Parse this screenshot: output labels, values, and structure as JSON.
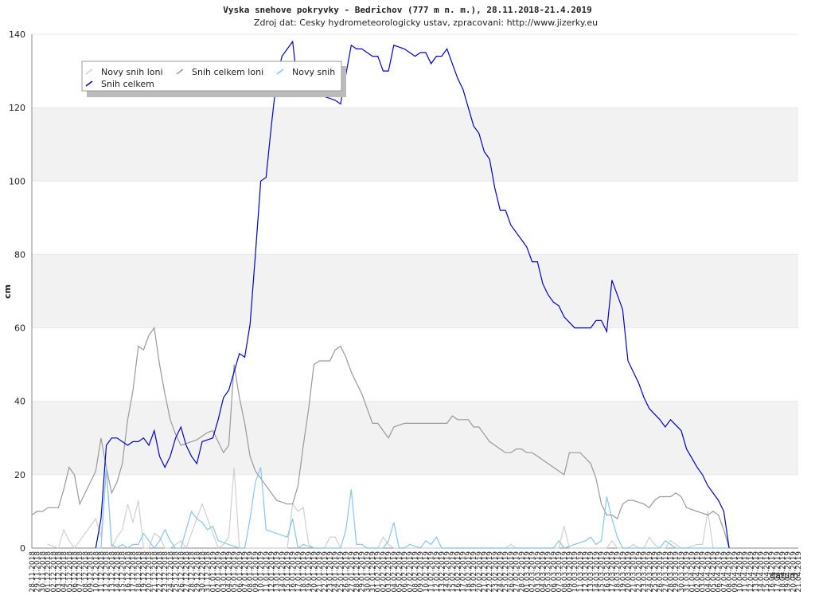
{
  "chart_data": {
    "type": "line",
    "title": "Vyska snehove pokryvky - Bedrichov (777 m n. m.), 28.11.2018-21.4.2019",
    "subtitle": "Zdroj dat: Cesky hydrometeorologicky ustav, zpracovani: http://www.jizerky.eu",
    "y_label": "cm",
    "x_label": "datum",
    "categories": [
      "28.11.2018",
      "29.11.2018",
      "30.11.2018",
      "01.12.2018",
      "02.12.2018",
      "03.12.2018",
      "04.12.2018",
      "05.12.2018",
      "06.12.2018",
      "07.12.2018",
      "08.12.2018",
      "09.12.2018",
      "10.12.2018",
      "11.12.2018",
      "12.12.2018",
      "13.12.2018",
      "14.12.2018",
      "15.12.2018",
      "16.12.2018",
      "17.12.2018",
      "18.12.2018",
      "19.12.2018",
      "20.12.2018",
      "21.12.2018",
      "22.12.2018",
      "23.12.2018",
      "24.12.2018",
      "25.12.2018",
      "26.12.2018",
      "27.12.2018",
      "28.12.2018",
      "29.12.2018",
      "30.12.2018",
      "31.12.2018",
      "01.01.2019",
      "02.01.2019",
      "03.01.2019",
      "04.01.2019",
      "05.01.2019",
      "06.01.2019",
      "07.01.2019",
      "08.01.2019",
      "09.01.2019",
      "10.01.2019",
      "11.01.2019",
      "12.01.2019",
      "13.01.2019",
      "14.01.2019",
      "15.01.2019",
      "16.01.2019",
      "17.01.2019",
      "18.01.2019",
      "19.01.2019",
      "20.01.2019",
      "21.01.2019",
      "22.01.2019",
      "23.01.2019",
      "24.01.2019",
      "25.01.2019",
      "26.01.2019",
      "27.01.2019",
      "28.01.2019",
      "29.01.2019",
      "30.01.2019",
      "31.01.2019",
      "01.02.2019",
      "02.02.2019",
      "03.02.2019",
      "04.02.2019",
      "05.02.2019",
      "06.02.2019",
      "07.02.2019",
      "08.02.2019",
      "09.02.2019",
      "10.02.2019",
      "11.02.2019",
      "12.02.2019",
      "13.02.2019",
      "14.02.2019",
      "15.02.2019",
      "16.02.2019",
      "17.02.2019",
      "18.02.2019",
      "19.02.2019",
      "20.02.2019",
      "21.02.2019",
      "22.02.2019",
      "23.02.2019",
      "24.02.2019",
      "25.02.2019",
      "26.02.2019",
      "27.02.2019",
      "28.02.2019",
      "01.03.2019",
      "02.03.2019",
      "03.03.2019",
      "04.03.2019",
      "05.03.2019",
      "06.03.2019",
      "07.03.2019",
      "08.03.2019",
      "09.03.2019",
      "10.03.2019",
      "11.03.2019",
      "12.03.2019",
      "13.03.2019",
      "14.03.2019",
      "15.03.2019",
      "16.03.2019",
      "17.03.2019",
      "18.03.2019",
      "19.03.2019",
      "20.03.2019",
      "21.03.2019",
      "22.03.2019",
      "23.03.2019",
      "24.03.2019",
      "25.03.2019",
      "26.03.2019",
      "27.03.2019",
      "28.03.2019",
      "29.03.2019",
      "30.03.2019",
      "31.03.2019",
      "01.04.2019",
      "02.04.2019",
      "03.04.2019",
      "04.04.2019",
      "05.04.2019",
      "06.04.2019",
      "07.04.2019",
      "08.04.2019",
      "09.04.2019",
      "10.04.2019",
      "11.04.2019",
      "12.04.2019",
      "13.04.2019",
      "14.04.2019",
      "15.04.2019",
      "16.04.2019",
      "17.04.2019",
      "18.04.2019",
      "19.04.2019",
      "20.04.2019",
      "21.04.2019"
    ],
    "series": [
      {
        "name": "Novy snih loni",
        "color": "#d0d0d0",
        "values": [
          null,
          null,
          null,
          1,
          0.5,
          0,
          5,
          2,
          0,
          2,
          4,
          6,
          8,
          3,
          22,
          0,
          3,
          5,
          12,
          7,
          13,
          0,
          0,
          4,
          3,
          0,
          0,
          1,
          2,
          0,
          4,
          8,
          12,
          8,
          4,
          0,
          1,
          3,
          22,
          0,
          0,
          0,
          0,
          0,
          0,
          0,
          0,
          0,
          0,
          12,
          10,
          11,
          1,
          0,
          0,
          0,
          3,
          3,
          0,
          0,
          0,
          0,
          0,
          0,
          0,
          0,
          3,
          1,
          0,
          0,
          0,
          0,
          0,
          0,
          0,
          0,
          0,
          0,
          0,
          0,
          0,
          0,
          0,
          0,
          0,
          0,
          0,
          0,
          0,
          0,
          1,
          0,
          0,
          0,
          0,
          0,
          0,
          0,
          0,
          0,
          6,
          0,
          0,
          0,
          0,
          0,
          0,
          0,
          0,
          2,
          0,
          0,
          0,
          1,
          0,
          0,
          3,
          1,
          0,
          0,
          2,
          1,
          0,
          0,
          0.5,
          1,
          1,
          10,
          0,
          null,
          null,
          null,
          null,
          null,
          null,
          null,
          null,
          null,
          null,
          null,
          null,
          null,
          null,
          null,
          null
        ]
      },
      {
        "name": "Snih celkem loni",
        "color": "#999999",
        "values": [
          9,
          10,
          10,
          11,
          11,
          11,
          16,
          22,
          20,
          12,
          15,
          18,
          21,
          30,
          22,
          15,
          18,
          23,
          35,
          43,
          55,
          54,
          58,
          60,
          50,
          42,
          35,
          31,
          28,
          28.5,
          29,
          29.5,
          30.5,
          31.5,
          32,
          29,
          26,
          28,
          50,
          41,
          34,
          25,
          21,
          19,
          17,
          15,
          13,
          12.5,
          12,
          12,
          17,
          28,
          38,
          50,
          51,
          51,
          51,
          54,
          55,
          52,
          48,
          45,
          42,
          38,
          34,
          34,
          32,
          30,
          33,
          33.5,
          34,
          34,
          34,
          34,
          34,
          34,
          34,
          34,
          34,
          36,
          35,
          35,
          35,
          33,
          33,
          31,
          29,
          28,
          27,
          26,
          26,
          27,
          27,
          26,
          26,
          25,
          24,
          23,
          22,
          21,
          20,
          26,
          26,
          26,
          24.5,
          23,
          19,
          12,
          9,
          9,
          8,
          12,
          13,
          13,
          12.5,
          12,
          11,
          13,
          14,
          14,
          14,
          15,
          14,
          11,
          10.5,
          10,
          9.5,
          9,
          10,
          9,
          5,
          0,
          null,
          null,
          null,
          null,
          null,
          null,
          null,
          null,
          null,
          null,
          null,
          null,
          null
        ]
      },
      {
        "name": "Novy snih",
        "color": "#87c6e8",
        "values": [
          null,
          null,
          null,
          null,
          null,
          null,
          null,
          null,
          null,
          null,
          null,
          null,
          0,
          0,
          22,
          1,
          0,
          1,
          0,
          1,
          1,
          4,
          2,
          0,
          2,
          5,
          2,
          0,
          0,
          5,
          10,
          8,
          7,
          5,
          6,
          2,
          1.5,
          1,
          0.5,
          0,
          0,
          8,
          18,
          22,
          5,
          4.5,
          4,
          3.5,
          3,
          8,
          0,
          1,
          0.5,
          0,
          0,
          0,
          0,
          0,
          0,
          5,
          16,
          1,
          1,
          0,
          0,
          0,
          0,
          2,
          7,
          0,
          0,
          1,
          0.5,
          0,
          2,
          1,
          3,
          0,
          0,
          0,
          0,
          0,
          0,
          0,
          0,
          0,
          0,
          0,
          0,
          0,
          0,
          0,
          0,
          0,
          0,
          0,
          0,
          0,
          0,
          2,
          0,
          0.5,
          1,
          1.5,
          2,
          3,
          1,
          2,
          14,
          8,
          3,
          0,
          0,
          0,
          0,
          0,
          0,
          0,
          0,
          2,
          1,
          0,
          0,
          0,
          0,
          0,
          0,
          0,
          0,
          0,
          0,
          0,
          null,
          null,
          null,
          null,
          null,
          null,
          null,
          null,
          null,
          null,
          null,
          null,
          null
        ]
      },
      {
        "name": "Snih celkem",
        "color": "#0000cc",
        "values": [
          null,
          null,
          null,
          null,
          null,
          null,
          null,
          null,
          null,
          null,
          null,
          null,
          0,
          8,
          28,
          30,
          30,
          29,
          28,
          29,
          29,
          30,
          28,
          32,
          25,
          22,
          25,
          30,
          33,
          28,
          25,
          23,
          29,
          29.5,
          30,
          35,
          41,
          43,
          48,
          53,
          52,
          61,
          80,
          100,
          101,
          115,
          128,
          134,
          136,
          138,
          125,
          124,
          124,
          124,
          123,
          123,
          122.5,
          122,
          121,
          129,
          137,
          136,
          136,
          135,
          134,
          134,
          130,
          130,
          137,
          136.5,
          136,
          135,
          134,
          135,
          135,
          132,
          134,
          134,
          136,
          132,
          128,
          125,
          120,
          115,
          113,
          108,
          106,
          98,
          92,
          92,
          88,
          86,
          84,
          82,
          78,
          78,
          72,
          69,
          67,
          66,
          63,
          61.5,
          60,
          60,
          60,
          60,
          62,
          62,
          59,
          73,
          69,
          65,
          51,
          48,
          45,
          41,
          38,
          36.5,
          35,
          33,
          35,
          33.5,
          32,
          27,
          24.5,
          22,
          20,
          17,
          15,
          13,
          10,
          0,
          null,
          null,
          null,
          null,
          null,
          null,
          null,
          null,
          null,
          null,
          null,
          null,
          null
        ]
      }
    ],
    "ylim": [
      0,
      140
    ],
    "yticks": [
      0,
      20,
      40,
      60,
      80,
      100,
      120,
      140
    ],
    "grid_bands": true
  }
}
